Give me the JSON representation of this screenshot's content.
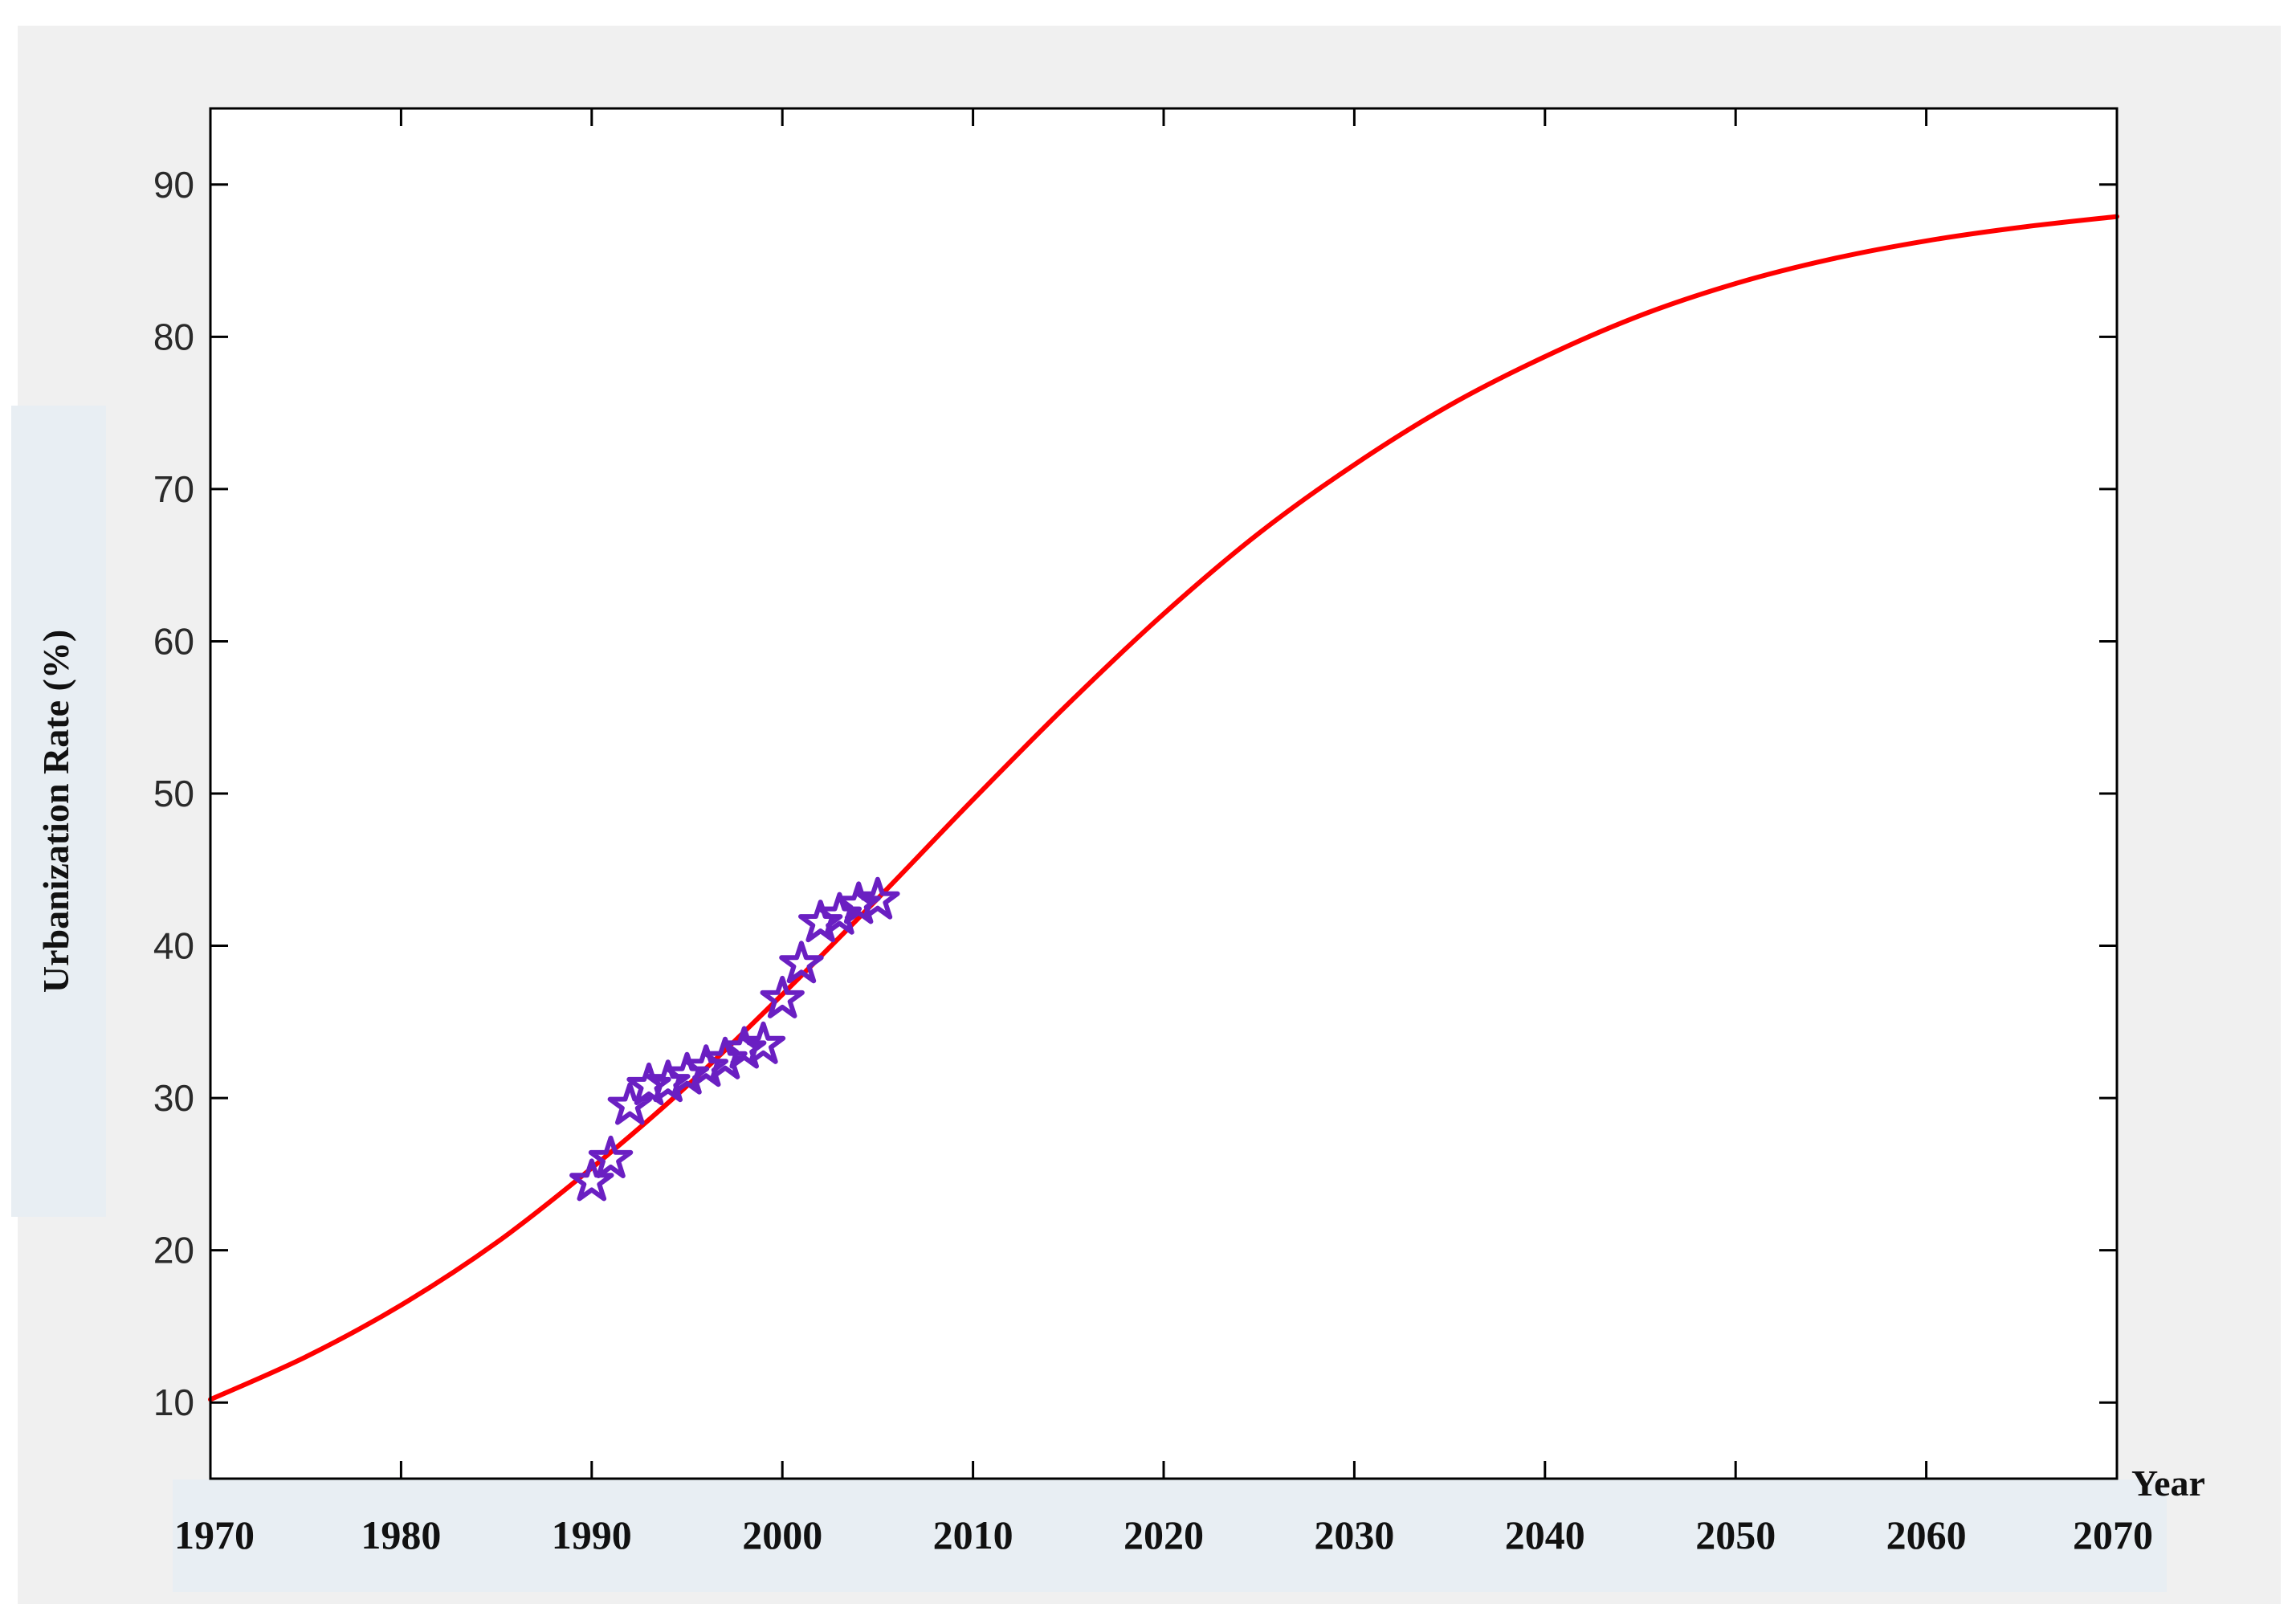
{
  "chart_data": {
    "type": "line",
    "xlabel": "Year",
    "ylabel": "Urbanization Rate (%)",
    "xlim": [
      1970,
      2070
    ],
    "ylim": [
      5,
      95
    ],
    "x_ticks": [
      1970,
      1980,
      1990,
      2000,
      2010,
      2020,
      2030,
      2040,
      2050,
      2060,
      2070
    ],
    "y_ticks": [
      10,
      20,
      30,
      40,
      50,
      60,
      70,
      80,
      90
    ],
    "grid": false,
    "colors": {
      "fit": "#ff0000",
      "observed": "#6a1fc2",
      "frame": "#000000",
      "background": "#f0f0f0"
    },
    "series": [
      {
        "style": "line",
        "x": [
          1970,
          1975,
          1980,
          1985,
          1990,
          1995,
          2000,
          2005,
          2010,
          2015,
          2020,
          2025,
          2030,
          2035,
          2040,
          2045,
          2050,
          2055,
          2060,
          2065,
          2070
        ],
        "y": [
          10.2,
          13.0,
          16.4,
          20.5,
          25.4,
          30.8,
          36.8,
          43.1,
          49.6,
          55.9,
          61.8,
          67.1,
          71.6,
          75.5,
          78.7,
          81.4,
          83.5,
          85.1,
          86.3,
          87.2,
          87.9
        ]
      },
      {
        "style": "markers",
        "marker": "star",
        "x": [
          1990,
          1991,
          1992,
          1993,
          1994,
          1995,
          1996,
          1997,
          1998,
          1999,
          2000,
          2001,
          2002,
          2003,
          2004,
          2005
        ],
        "y": [
          24.5,
          26.0,
          29.5,
          30.8,
          31.0,
          31.5,
          32.0,
          32.5,
          33.2,
          33.5,
          36.5,
          38.8,
          41.5,
          42.0,
          42.7,
          43.0
        ]
      }
    ]
  }
}
